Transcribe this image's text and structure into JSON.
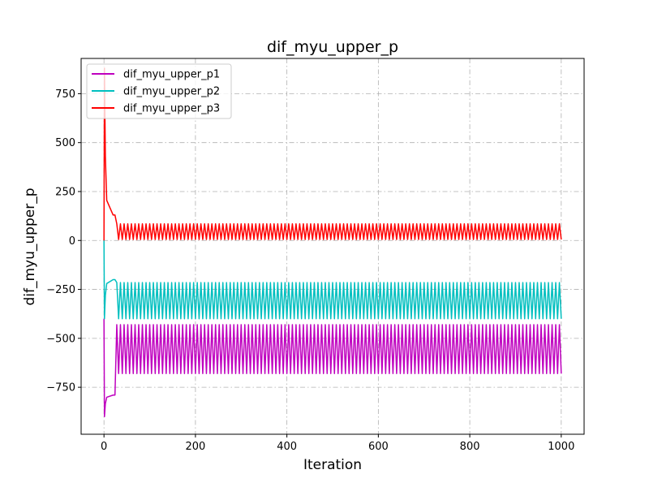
{
  "chart_data": {
    "type": "line",
    "title": "dif_myu_upper_p",
    "xlabel": "Iteration",
    "ylabel": "dif_myu_upper_p",
    "xlim": [
      -50,
      1050
    ],
    "ylim": [
      -990,
      930
    ],
    "x_ticks": [
      0,
      200,
      400,
      600,
      800,
      1000
    ],
    "y_ticks": [
      -750,
      -500,
      -250,
      0,
      250,
      500,
      750
    ],
    "x_tick_labels": [
      "0",
      "200",
      "400",
      "600",
      "800",
      "1000"
    ],
    "y_tick_labels": [
      "−750",
      "−500",
      "−250",
      "0",
      "250",
      "500",
      "750"
    ],
    "grid": true,
    "legend_position": "top-left",
    "n_iterations": 1000,
    "oscillation_period": 8,
    "series": [
      {
        "name": "dif_myu_upper_p1",
        "color": "#bf00bf",
        "start_value": -400,
        "spike_value": -900,
        "plateau_value": -790,
        "plateau_end": 20,
        "oscillation_high": -430,
        "oscillation_low": -680
      },
      {
        "name": "dif_myu_upper_p2",
        "color": "#00bfbf",
        "start_value": 0,
        "spike_value": -400,
        "plateau_value": -200,
        "plateau_end": 20,
        "oscillation_high": -215,
        "oscillation_low": -400
      },
      {
        "name": "dif_myu_upper_p3",
        "color": "#ff0000",
        "start_value": 0,
        "spike_value": 880,
        "plateau_value": 130,
        "plateau_end": 20,
        "oscillation_high": 85,
        "oscillation_low": 5
      }
    ]
  }
}
